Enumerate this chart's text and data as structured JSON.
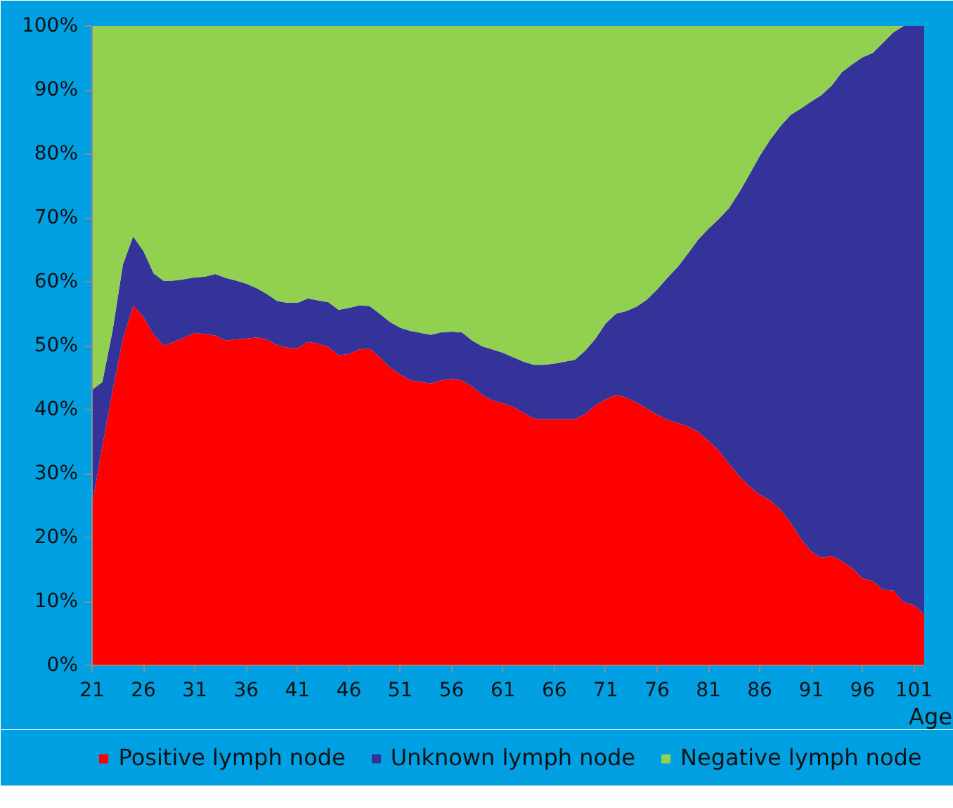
{
  "chart_data": {
    "type": "area",
    "stacked": true,
    "xlabel": "Age",
    "x": [
      21,
      22,
      23,
      24,
      25,
      26,
      27,
      28,
      29,
      30,
      31,
      32,
      33,
      34,
      35,
      36,
      37,
      38,
      39,
      40,
      41,
      42,
      43,
      44,
      45,
      46,
      47,
      48,
      49,
      50,
      51,
      52,
      53,
      54,
      55,
      56,
      57,
      58,
      59,
      60,
      61,
      62,
      63,
      64,
      65,
      66,
      67,
      68,
      69,
      70,
      71,
      72,
      73,
      74,
      75,
      76,
      77,
      78,
      79,
      80,
      81,
      82,
      83,
      84,
      85,
      86,
      87,
      88,
      89,
      90,
      91,
      92,
      93,
      94,
      95,
      96,
      97,
      98,
      99,
      100,
      101,
      102
    ],
    "series": [
      {
        "name": "Positive lymph node",
        "color": "#ff0000",
        "values": [
          25,
          34.3,
          43,
          51,
          56.3,
          54.5,
          51.7,
          50,
          50.6,
          51.3,
          52,
          51.8,
          51.6,
          50.8,
          51,
          51.1,
          51.3,
          51,
          50.1,
          49.7,
          49.6,
          50.6,
          50.3,
          49.8,
          48.5,
          48.7,
          49.4,
          49.6,
          48.2,
          46.6,
          45.5,
          44.6,
          44.3,
          44.1,
          44.6,
          44.8,
          44.6,
          43.6,
          42.3,
          41.4,
          41,
          40.4,
          39.5,
          38.6,
          38.5,
          38.5,
          38.5,
          38.5,
          39.3,
          40.7,
          41.6,
          42.3,
          41.9,
          41.1,
          40.2,
          39.2,
          38.4,
          37.9,
          37.4,
          36.5,
          35.1,
          33.6,
          31.5,
          29.6,
          28,
          26.7,
          25.8,
          24.4,
          22.3,
          19.8,
          17.8,
          16.8,
          17.1,
          16.3,
          15.2,
          13.6,
          13.2,
          11.8,
          11.7,
          9.9,
          9.4,
          8.0
        ]
      },
      {
        "name": "Unknown lymph node",
        "color": "#333399",
        "values": [
          18.1,
          10.0,
          9.4,
          11.7,
          10.8,
          10.3,
          9.6,
          10.1,
          9.6,
          9.1,
          8.7,
          9.0,
          9.6,
          9.8,
          9.2,
          8.6,
          7.7,
          7.1,
          6.9,
          7.0,
          7.1,
          6.8,
          6.8,
          7.0,
          7.1,
          7.2,
          6.9,
          6.6,
          6.8,
          7.1,
          7.3,
          7.7,
          7.7,
          7.6,
          7.5,
          7.4,
          7.5,
          7.2,
          7.6,
          8.0,
          7.9,
          7.8,
          8.0,
          8.4,
          8.5,
          8.7,
          9.0,
          9.3,
          9.9,
          10.4,
          11.9,
          12.7,
          13.5,
          15.0,
          17.0,
          19.6,
          22.2,
          24.4,
          27.0,
          30.1,
          33.2,
          36.2,
          40.0,
          44.4,
          48.8,
          53.0,
          56.4,
          59.9,
          63.8,
          67.3,
          70.4,
          72.4,
          73.6,
          76.5,
          78.8,
          81.5,
          82.6,
          85.6,
          87.3,
          90.1,
          90.6,
          92.0
        ]
      },
      {
        "name": "Negative lymph node",
        "color": "#92d050",
        "values": [
          56.9,
          55.7,
          47.6,
          37.3,
          32.9,
          35.2,
          38.7,
          39.9,
          39.8,
          39.6,
          39.3,
          39.2,
          38.8,
          39.4,
          39.8,
          40.3,
          41,
          41.9,
          43,
          43.3,
          43.3,
          42.6,
          42.9,
          43.2,
          44.4,
          44.1,
          43.7,
          43.8,
          45,
          46.3,
          47.2,
          47.7,
          48,
          48.3,
          47.9,
          47.8,
          47.9,
          49.2,
          50.1,
          50.6,
          51.1,
          51.8,
          52.5,
          53,
          53,
          52.8,
          52.5,
          52.2,
          50.8,
          48.9,
          46.5,
          45,
          44.6,
          43.9,
          42.8,
          41.2,
          39.4,
          37.7,
          35.6,
          33.4,
          31.7,
          30.2,
          28.5,
          26,
          23.2,
          20.3,
          17.8,
          15.7,
          13.9,
          12.9,
          11.8,
          10.8,
          9.3,
          7.2,
          6,
          4.9,
          4.2,
          2.6,
          1,
          0,
          0,
          0
        ]
      }
    ],
    "xlim": [
      21,
      102
    ],
    "xticks": [
      21,
      26,
      31,
      36,
      41,
      46,
      51,
      56,
      61,
      66,
      71,
      76,
      81,
      86,
      91,
      96,
      101
    ],
    "ylim": [
      0,
      100
    ],
    "yticks": [
      {
        "value": 0,
        "label": "0%"
      },
      {
        "value": 10,
        "label": "10%"
      },
      {
        "value": 20,
        "label": "20%"
      },
      {
        "value": 30,
        "label": "30%"
      },
      {
        "value": 40,
        "label": "40%"
      },
      {
        "value": 50,
        "label": "50%"
      },
      {
        "value": 60,
        "label": "60%"
      },
      {
        "value": 70,
        "label": "70%"
      },
      {
        "value": 80,
        "label": "80%"
      },
      {
        "value": 90,
        "label": "90%"
      },
      {
        "value": 100,
        "label": "100%"
      }
    ],
    "legend": "bottom",
    "grid": false
  }
}
